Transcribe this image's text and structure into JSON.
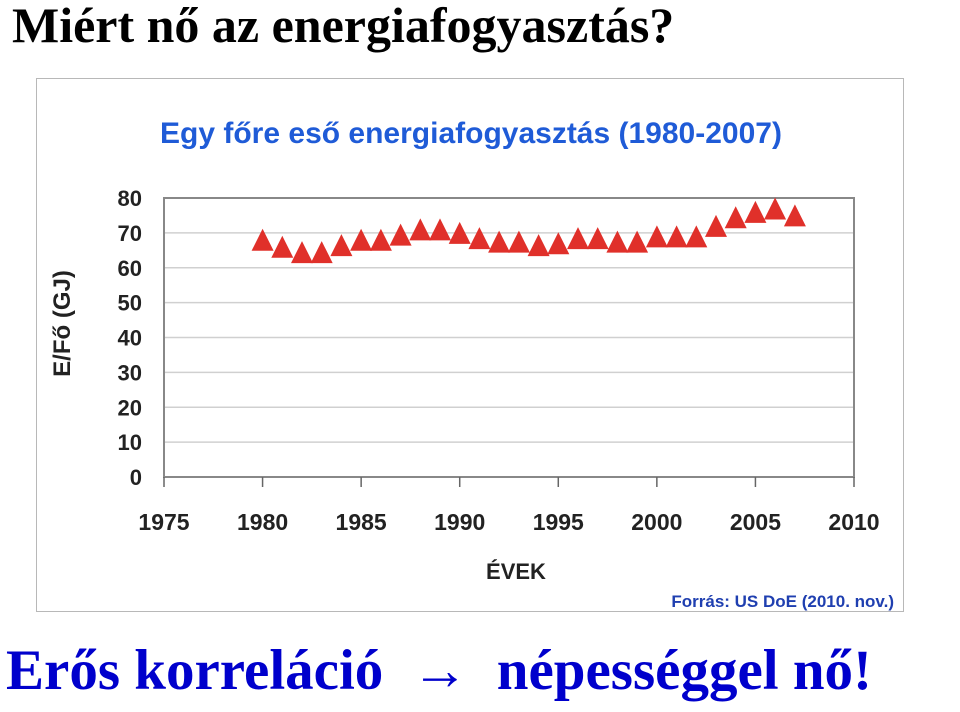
{
  "slide": {
    "title": "Miért nő az energiafogyasztás?",
    "bottom_text_left": "Erős korreláció",
    "bottom_arrow": "→",
    "bottom_text_right": "népességgel nő!"
  },
  "colors": {
    "title": "#000000",
    "bottom_text": "#0000cc",
    "chart_title": "#1f5bd7",
    "marker": "#e0302a",
    "source": "#1f3fb0",
    "grid": "#d0d0d0",
    "axis_text": "#222222"
  },
  "chart_data": {
    "type": "scatter",
    "title": "Egy főre eső energiafogyasztás (1980-2007)",
    "xlabel": "ÉVEK",
    "ylabel": "E/Fő (GJ)",
    "source": "Forrás: US DoE (2010. nov.)",
    "xlim": [
      1975,
      2010
    ],
    "ylim": [
      0,
      80
    ],
    "xticks": [
      1975,
      1980,
      1985,
      1990,
      1995,
      2000,
      2005,
      2010
    ],
    "yticks": [
      0,
      10,
      20,
      30,
      40,
      50,
      60,
      70,
      80
    ],
    "grid": true,
    "marker": "triangle",
    "x": [
      1980,
      1981,
      1982,
      1983,
      1984,
      1985,
      1986,
      1987,
      1988,
      1989,
      1990,
      1991,
      1992,
      1993,
      1994,
      1995,
      1996,
      1997,
      1998,
      1999,
      2000,
      2001,
      2002,
      2003,
      2004,
      2005,
      2006,
      2007
    ],
    "y": [
      68,
      66,
      64.5,
      64.5,
      66.5,
      68,
      68,
      69.5,
      71,
      71,
      70,
      68.5,
      67.5,
      67.5,
      66.5,
      67,
      68.5,
      68.5,
      67.5,
      67.5,
      69,
      69,
      69,
      72,
      74.5,
      76,
      77,
      75
    ]
  }
}
